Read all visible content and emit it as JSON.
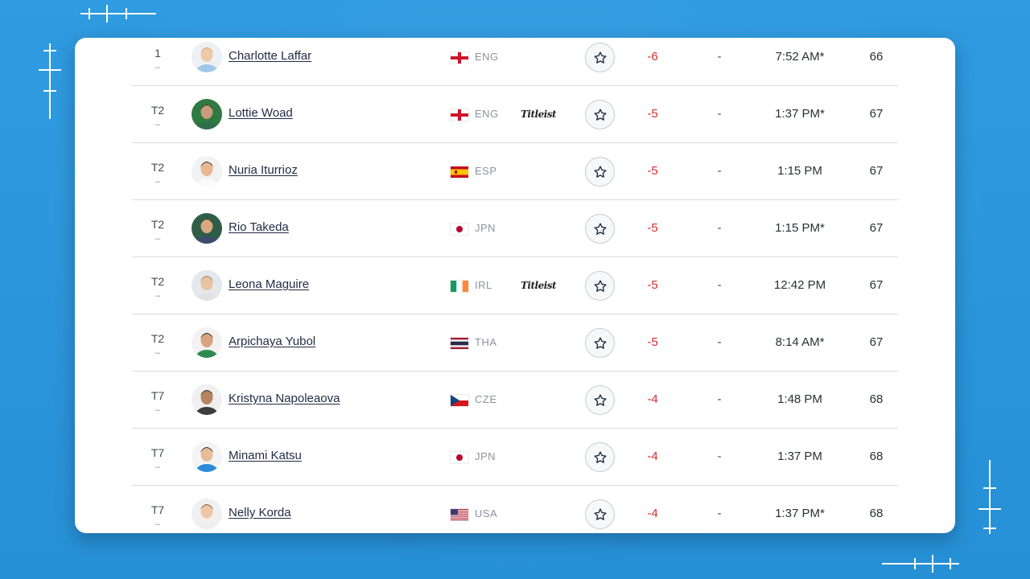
{
  "colors": {
    "background": "#2b97dd",
    "card": "#ffffff",
    "score_under_par": "#d22f2f",
    "row_divider": "#d8dbe0"
  },
  "leaderboard": {
    "rows": [
      {
        "pos": "1",
        "move": "–",
        "name": "Charlotte Laffar",
        "flag": "england",
        "country": "ENG",
        "sponsor": "",
        "score": "-6",
        "thru": "-",
        "time": "7:52 AM*",
        "round": "66",
        "fav_icon": "star-outline-icon"
      },
      {
        "pos": "T2",
        "move": "–",
        "name": "Lottie Woad",
        "flag": "england",
        "country": "ENG",
        "sponsor": "Titleist",
        "score": "-5",
        "thru": "-",
        "time": "1:37 PM*",
        "round": "67",
        "fav_icon": "star-outline-icon"
      },
      {
        "pos": "T2",
        "move": "–",
        "name": "Nuria Iturrioz",
        "flag": "spain",
        "country": "ESP",
        "sponsor": "",
        "score": "-5",
        "thru": "-",
        "time": "1:15 PM",
        "round": "67",
        "fav_icon": "star-outline-icon"
      },
      {
        "pos": "T2",
        "move": "–",
        "name": "Rio Takeda",
        "flag": "japan",
        "country": "JPN",
        "sponsor": "",
        "score": "-5",
        "thru": "-",
        "time": "1:15 PM*",
        "round": "67",
        "fav_icon": "star-outline-icon"
      },
      {
        "pos": "T2",
        "move": "–",
        "name": "Leona Maguire",
        "flag": "ireland",
        "country": "IRL",
        "sponsor": "Titleist",
        "score": "-5",
        "thru": "-",
        "time": "12:42 PM",
        "round": "67",
        "fav_icon": "star-outline-icon"
      },
      {
        "pos": "T2",
        "move": "–",
        "name": "Arpichaya Yubol",
        "flag": "thailand",
        "country": "THA",
        "sponsor": "",
        "score": "-5",
        "thru": "-",
        "time": "8:14 AM*",
        "round": "67",
        "fav_icon": "star-outline-icon"
      },
      {
        "pos": "T7",
        "move": "–",
        "name": "Kristyna Napoleaova",
        "flag": "czech",
        "country": "CZE",
        "sponsor": "",
        "score": "-4",
        "thru": "-",
        "time": "1:48 PM",
        "round": "68",
        "fav_icon": "star-outline-icon"
      },
      {
        "pos": "T7",
        "move": "–",
        "name": "Minami Katsu",
        "flag": "japan",
        "country": "JPN",
        "sponsor": "",
        "score": "-4",
        "thru": "-",
        "time": "1:37 PM",
        "round": "68",
        "fav_icon": "star-outline-icon"
      },
      {
        "pos": "T7",
        "move": "–",
        "name": "Nelly Korda",
        "flag": "usa",
        "country": "USA",
        "sponsor": "",
        "score": "-4",
        "thru": "-",
        "time": "1:37 PM*",
        "round": "68",
        "fav_icon": "star-outline-icon"
      }
    ]
  }
}
